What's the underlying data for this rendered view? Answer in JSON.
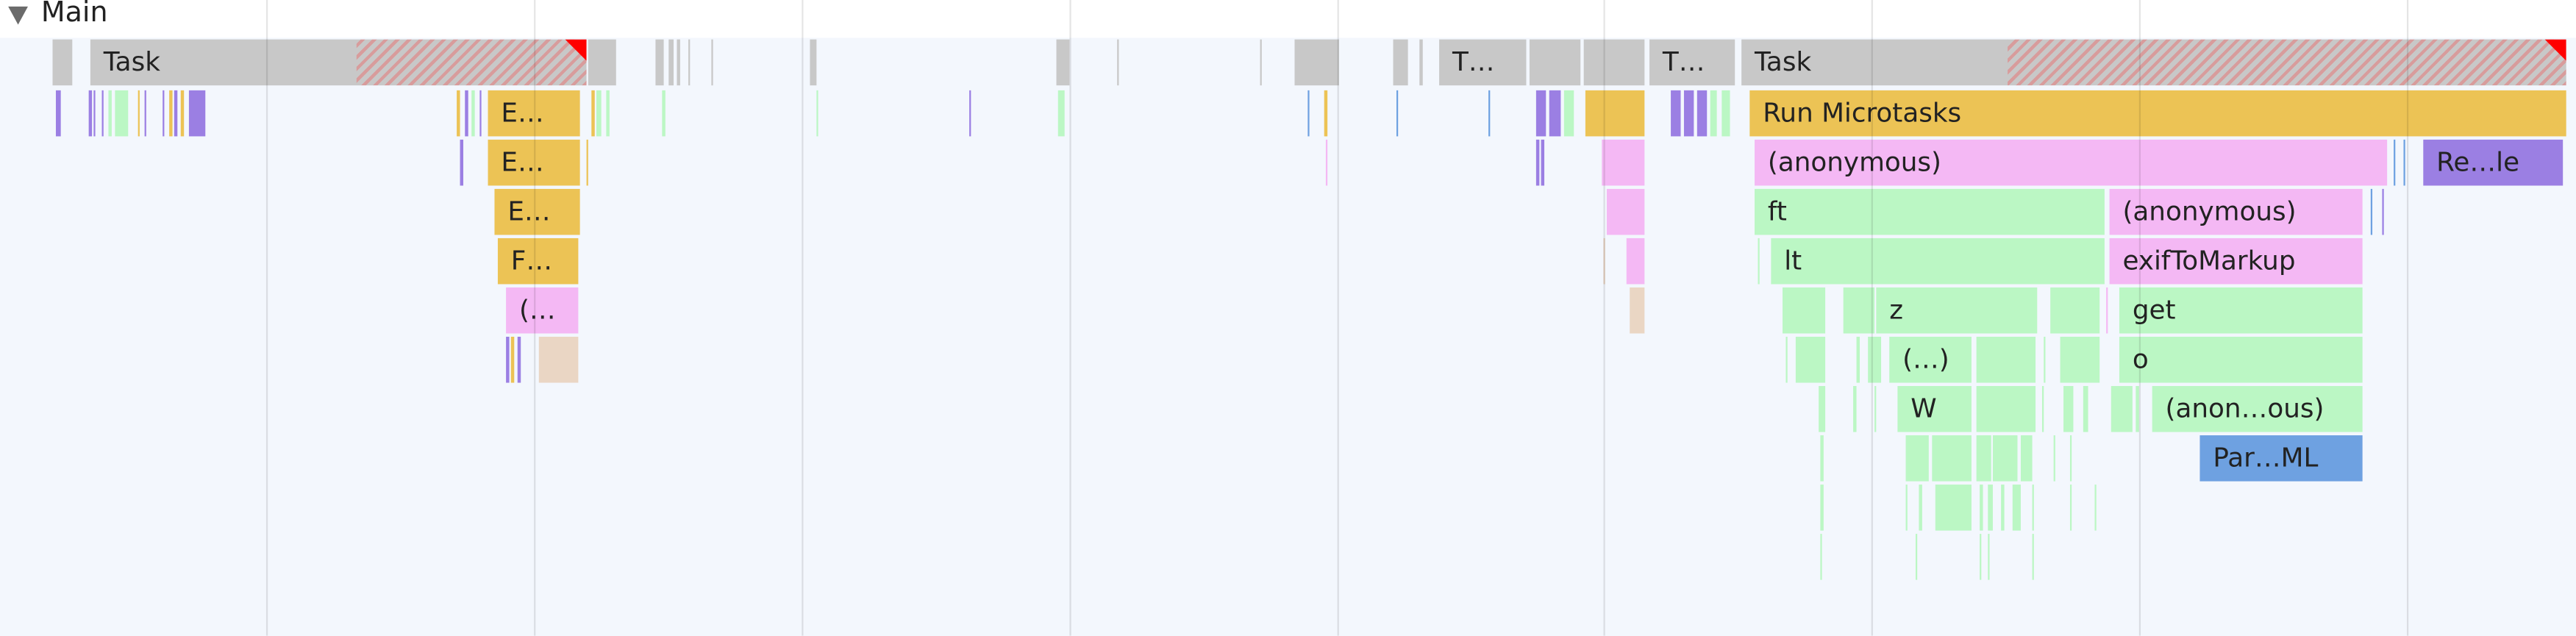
{
  "track": {
    "title": "Main",
    "expanded": true,
    "expand_icon": "triangle-down-icon"
  },
  "colors": {
    "task": "#c8c8c8",
    "scripting": "#ecc355",
    "function": "#f4b8f4",
    "js": "#bbf7c4",
    "rendering": "#9b7fe3",
    "parse": "#6ea1e1",
    "gc": "#ead6c4",
    "long_task_flag": "#ff0000",
    "background": "#f3f7fd"
  },
  "labels": {
    "task1": "Task",
    "e1": "E…",
    "e2": "E…",
    "e3": "E…",
    "f1": "F…",
    "anon_short": "(…",
    "t_short1": "T…",
    "t_short2": "T…",
    "task2": "Task",
    "run_microtasks": "Run Microtasks",
    "anonymous1": "(anonymous)",
    "recalc": "Re…le",
    "ft": "ft",
    "anonymous2": "(anonymous)",
    "lt": "lt",
    "exif": "exifToMarkup",
    "z": "z",
    "get": "get",
    "paren": "(…)",
    "o": "o",
    "w": "W",
    "anon_ous": "(anon…ous)",
    "parse_html": "Par…ML"
  }
}
